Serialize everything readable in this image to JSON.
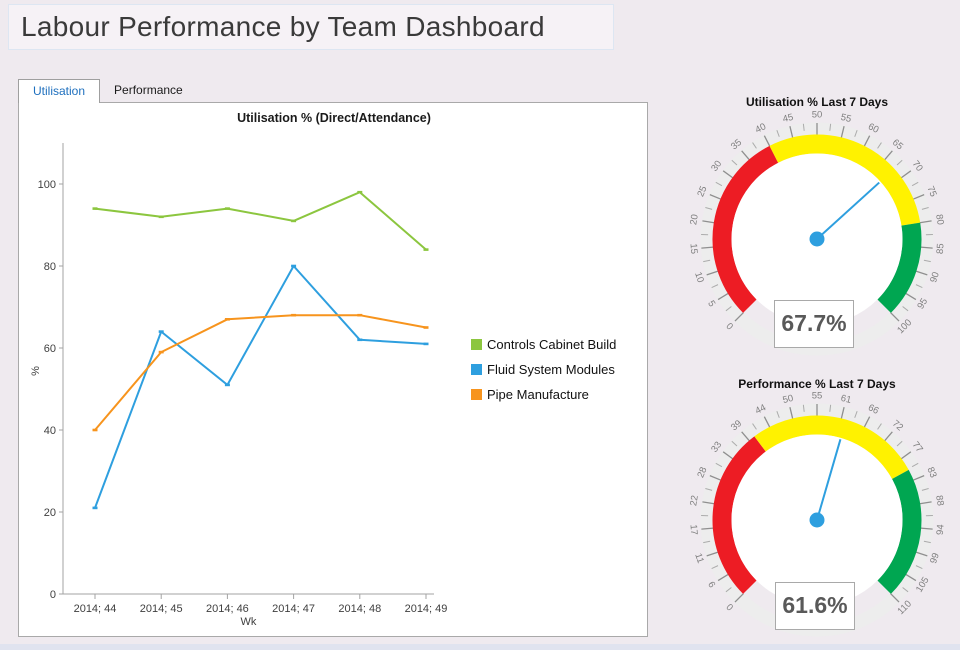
{
  "page": {
    "title": "Labour Performance by Team Dashboard",
    "background": "#efeaef",
    "accent_blue": "#2e9fdf"
  },
  "tabs": {
    "items": [
      {
        "label": "Utilisation",
        "active": true
      },
      {
        "label": "Performance",
        "active": false
      }
    ]
  },
  "chart_data": [
    {
      "type": "line",
      "title": "Utilisation % (Direct/Attendance)",
      "xlabel": "Wk",
      "ylabel": "%",
      "ylim": [
        0,
        110
      ],
      "yticks": [
        0,
        20,
        40,
        60,
        80,
        100
      ],
      "grid": false,
      "legend_position": "right",
      "categories": [
        "2014; 44",
        "2014; 45",
        "2014; 46",
        "2014; 47",
        "2014; 48",
        "2014; 49"
      ],
      "series": [
        {
          "name": "Controls Cabinet Build",
          "color": "#8cc63f",
          "values": [
            94,
            92,
            94,
            91,
            98,
            84
          ]
        },
        {
          "name": "Fluid System Modules",
          "color": "#2e9fdf",
          "values": [
            21,
            64,
            51,
            80,
            62,
            61
          ]
        },
        {
          "name": "Pipe Manufacture",
          "color": "#f7941d",
          "values": [
            40,
            59,
            67,
            68,
            68,
            65
          ]
        }
      ]
    },
    {
      "type": "gauge",
      "title": "Utilisation % Last 7 Days",
      "value": 67.7,
      "display_value": "67.7%",
      "min": 0,
      "max": 100,
      "start_angle": 225,
      "sweep": 270,
      "major_step": 5,
      "minor_step": 2.5,
      "tick_labels": [
        "0",
        "5",
        "10",
        "15",
        "20",
        "25",
        "30",
        "35",
        "40",
        "45",
        "50",
        "55",
        "60",
        "65",
        "70",
        "75",
        "80",
        "85",
        "90",
        "95",
        "100"
      ],
      "bands": [
        {
          "from": 0,
          "to": 40,
          "color": "#ed1c24"
        },
        {
          "from": 40,
          "to": 80,
          "color": "#fff200"
        },
        {
          "from": 80,
          "to": 100,
          "color": "#00a651"
        }
      ],
      "needle_color": "#2e9fdf"
    },
    {
      "type": "gauge",
      "title": "Performance % Last 7 Days",
      "value": 61.6,
      "display_value": "61.6%",
      "min": 0,
      "max": 110,
      "start_angle": 225,
      "sweep": 270,
      "major_step": 5.5,
      "minor_step": 2.75,
      "tick_labels": [
        "0",
        "6",
        "11",
        "17",
        "22",
        "28",
        "33",
        "39",
        "44",
        "50",
        "55",
        "61",
        "66",
        "72",
        "77",
        "83",
        "88",
        "94",
        "99",
        "105",
        "110"
      ],
      "bands": [
        {
          "from": 0,
          "to": 40,
          "color": "#ed1c24"
        },
        {
          "from": 40,
          "to": 80,
          "color": "#fff200"
        },
        {
          "from": 80,
          "to": 110,
          "color": "#00a651"
        }
      ],
      "needle_color": "#2e9fdf"
    }
  ]
}
